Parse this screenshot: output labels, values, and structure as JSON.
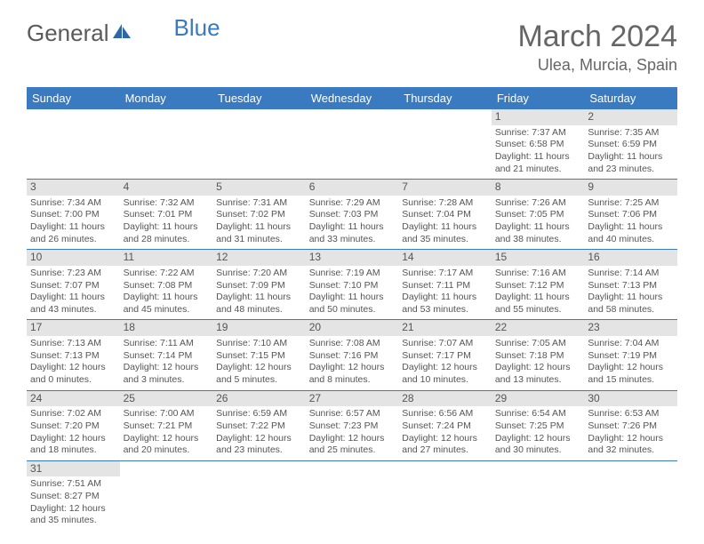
{
  "logo": {
    "part1": "General",
    "part2": "Blue"
  },
  "title": "March 2024",
  "location": "Ulea, Murcia, Spain",
  "colors": {
    "header_bg": "#3a7ac0",
    "daynum_bg": "#e4e4e4",
    "text": "#555555",
    "rule": "#3a7ac0"
  },
  "weekdays": [
    "Sunday",
    "Monday",
    "Tuesday",
    "Wednesday",
    "Thursday",
    "Friday",
    "Saturday"
  ],
  "weeks": [
    [
      null,
      null,
      null,
      null,
      null,
      {
        "d": "1",
        "sr": "7:37 AM",
        "ss": "6:58 PM",
        "dl": "11 hours and 21 minutes."
      },
      {
        "d": "2",
        "sr": "7:35 AM",
        "ss": "6:59 PM",
        "dl": "11 hours and 23 minutes."
      }
    ],
    [
      {
        "d": "3",
        "sr": "7:34 AM",
        "ss": "7:00 PM",
        "dl": "11 hours and 26 minutes."
      },
      {
        "d": "4",
        "sr": "7:32 AM",
        "ss": "7:01 PM",
        "dl": "11 hours and 28 minutes."
      },
      {
        "d": "5",
        "sr": "7:31 AM",
        "ss": "7:02 PM",
        "dl": "11 hours and 31 minutes."
      },
      {
        "d": "6",
        "sr": "7:29 AM",
        "ss": "7:03 PM",
        "dl": "11 hours and 33 minutes."
      },
      {
        "d": "7",
        "sr": "7:28 AM",
        "ss": "7:04 PM",
        "dl": "11 hours and 35 minutes."
      },
      {
        "d": "8",
        "sr": "7:26 AM",
        "ss": "7:05 PM",
        "dl": "11 hours and 38 minutes."
      },
      {
        "d": "9",
        "sr": "7:25 AM",
        "ss": "7:06 PM",
        "dl": "11 hours and 40 minutes."
      }
    ],
    [
      {
        "d": "10",
        "sr": "7:23 AM",
        "ss": "7:07 PM",
        "dl": "11 hours and 43 minutes."
      },
      {
        "d": "11",
        "sr": "7:22 AM",
        "ss": "7:08 PM",
        "dl": "11 hours and 45 minutes."
      },
      {
        "d": "12",
        "sr": "7:20 AM",
        "ss": "7:09 PM",
        "dl": "11 hours and 48 minutes."
      },
      {
        "d": "13",
        "sr": "7:19 AM",
        "ss": "7:10 PM",
        "dl": "11 hours and 50 minutes."
      },
      {
        "d": "14",
        "sr": "7:17 AM",
        "ss": "7:11 PM",
        "dl": "11 hours and 53 minutes."
      },
      {
        "d": "15",
        "sr": "7:16 AM",
        "ss": "7:12 PM",
        "dl": "11 hours and 55 minutes."
      },
      {
        "d": "16",
        "sr": "7:14 AM",
        "ss": "7:13 PM",
        "dl": "11 hours and 58 minutes."
      }
    ],
    [
      {
        "d": "17",
        "sr": "7:13 AM",
        "ss": "7:13 PM",
        "dl": "12 hours and 0 minutes."
      },
      {
        "d": "18",
        "sr": "7:11 AM",
        "ss": "7:14 PM",
        "dl": "12 hours and 3 minutes."
      },
      {
        "d": "19",
        "sr": "7:10 AM",
        "ss": "7:15 PM",
        "dl": "12 hours and 5 minutes."
      },
      {
        "d": "20",
        "sr": "7:08 AM",
        "ss": "7:16 PM",
        "dl": "12 hours and 8 minutes."
      },
      {
        "d": "21",
        "sr": "7:07 AM",
        "ss": "7:17 PM",
        "dl": "12 hours and 10 minutes."
      },
      {
        "d": "22",
        "sr": "7:05 AM",
        "ss": "7:18 PM",
        "dl": "12 hours and 13 minutes."
      },
      {
        "d": "23",
        "sr": "7:04 AM",
        "ss": "7:19 PM",
        "dl": "12 hours and 15 minutes."
      }
    ],
    [
      {
        "d": "24",
        "sr": "7:02 AM",
        "ss": "7:20 PM",
        "dl": "12 hours and 18 minutes."
      },
      {
        "d": "25",
        "sr": "7:00 AM",
        "ss": "7:21 PM",
        "dl": "12 hours and 20 minutes."
      },
      {
        "d": "26",
        "sr": "6:59 AM",
        "ss": "7:22 PM",
        "dl": "12 hours and 23 minutes."
      },
      {
        "d": "27",
        "sr": "6:57 AM",
        "ss": "7:23 PM",
        "dl": "12 hours and 25 minutes."
      },
      {
        "d": "28",
        "sr": "6:56 AM",
        "ss": "7:24 PM",
        "dl": "12 hours and 27 minutes."
      },
      {
        "d": "29",
        "sr": "6:54 AM",
        "ss": "7:25 PM",
        "dl": "12 hours and 30 minutes."
      },
      {
        "d": "30",
        "sr": "6:53 AM",
        "ss": "7:26 PM",
        "dl": "12 hours and 32 minutes."
      }
    ],
    [
      {
        "d": "31",
        "sr": "7:51 AM",
        "ss": "8:27 PM",
        "dl": "12 hours and 35 minutes."
      },
      null,
      null,
      null,
      null,
      null,
      null
    ]
  ],
  "labels": {
    "sunrise": "Sunrise: ",
    "sunset": "Sunset: ",
    "daylight": "Daylight: "
  }
}
